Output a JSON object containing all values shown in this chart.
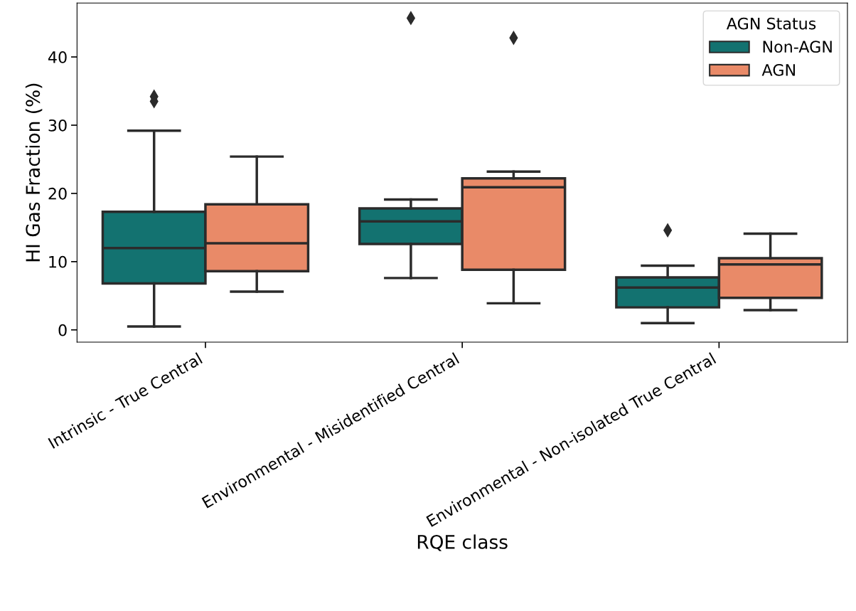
{
  "chart_data": {
    "type": "box",
    "xlabel": "RQE class",
    "ylabel": "HI Gas Fraction (%)",
    "legend_title": "AGN Status",
    "categories": [
      "Intrinsic - True Central",
      "Environmental - Misidentified Central",
      "Environmental - Non-isolated True Central"
    ],
    "series": [
      {
        "name": "Non-AGN",
        "color": "#137270",
        "boxes": [
          {
            "low": 0.5,
            "q1": 6.8,
            "median": 12.0,
            "q3": 17.3,
            "high": 29.2,
            "outliers": [
              33.5,
              34.2
            ]
          },
          {
            "low": 7.6,
            "q1": 12.6,
            "median": 15.9,
            "q3": 17.8,
            "high": 19.1,
            "outliers": [
              45.7
            ]
          },
          {
            "low": 1.0,
            "q1": 3.3,
            "median": 6.2,
            "q3": 7.7,
            "high": 9.4,
            "outliers": [
              14.6
            ]
          }
        ]
      },
      {
        "name": "AGN",
        "color": "#e98a68",
        "boxes": [
          {
            "low": 5.6,
            "q1": 8.6,
            "median": 12.7,
            "q3": 18.4,
            "high": 25.4
          },
          {
            "low": 3.9,
            "q1": 8.8,
            "median": 20.9,
            "q3": 22.2,
            "high": 23.2,
            "outliers": [
              42.8
            ]
          },
          {
            "low": 2.9,
            "q1": 4.7,
            "median": 9.6,
            "q3": 10.5,
            "high": 14.1
          }
        ]
      }
    ],
    "ylim": [
      -1.8,
      47.9
    ],
    "yticks": [
      0,
      10,
      20,
      30,
      40
    ],
    "grid": false,
    "legend": "top right",
    "marker": "diamond"
  }
}
